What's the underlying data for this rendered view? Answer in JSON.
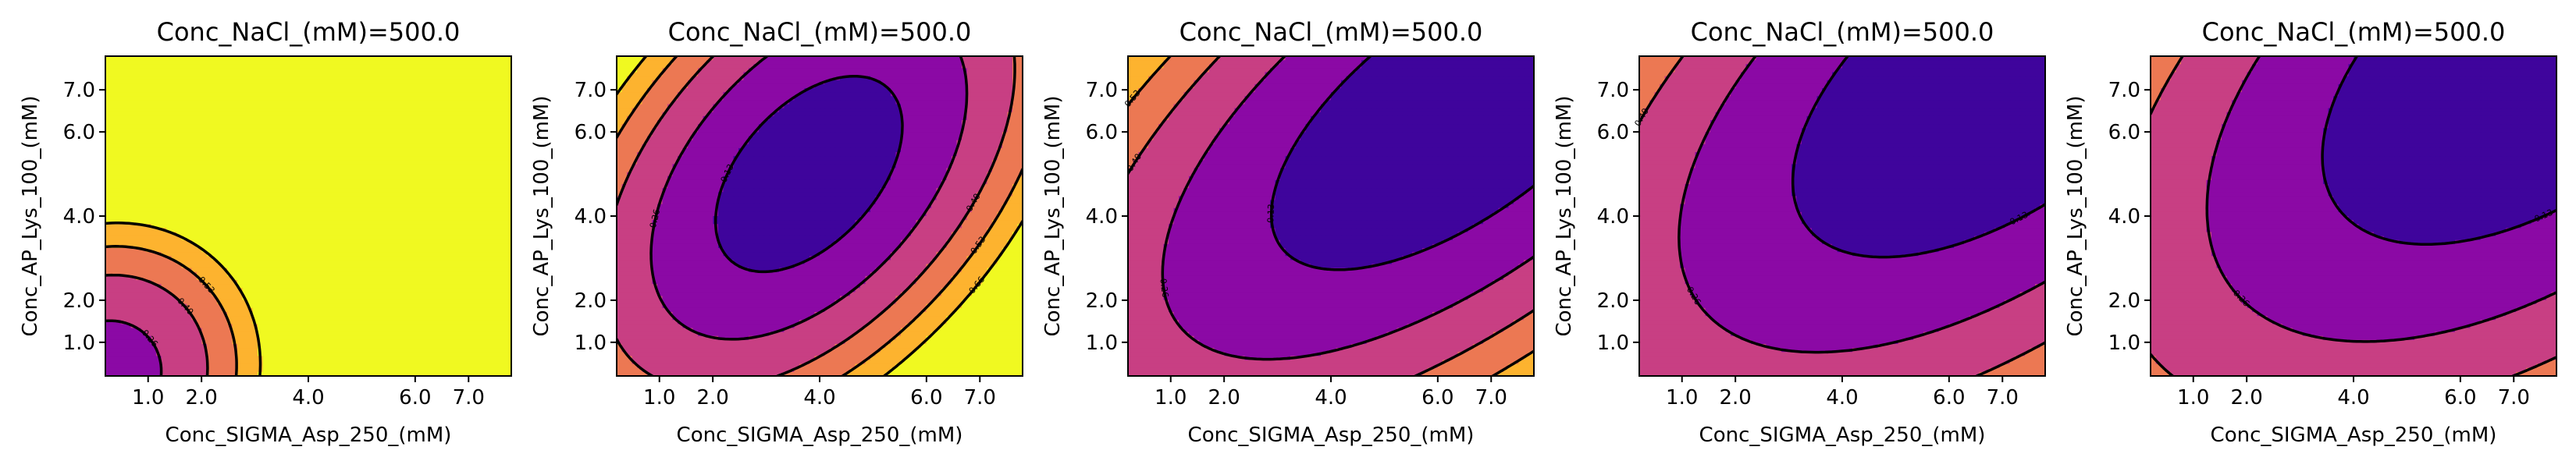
{
  "chart_data": [
    {
      "type": "contour",
      "title": "Conc_NaCl_(mM)=500.0",
      "xlabel": "Conc_SIGMA_Asp_250_(mM)",
      "ylabel": "Conc_AP_Lys_100_(mM)",
      "xlim": [
        0.2,
        7.8
      ],
      "ylim": [
        0.2,
        7.8
      ],
      "xticks": [
        {
          "v": 1.0,
          "label": "1.0"
        },
        {
          "v": 2.0,
          "label": "2.0"
        },
        {
          "v": 4.0,
          "label": "4.0"
        },
        {
          "v": 6.0,
          "label": "6.0"
        },
        {
          "v": 7.0,
          "label": "7.0"
        }
      ],
      "yticks": [
        {
          "v": 1.0,
          "label": "1.0"
        },
        {
          "v": 2.0,
          "label": "2.0"
        },
        {
          "v": 4.0,
          "label": "4.0"
        },
        {
          "v": 6.0,
          "label": "6.0"
        },
        {
          "v": 7.0,
          "label": "7.0"
        }
      ],
      "levels": [
        0.13,
        0.26,
        0.4,
        0.53,
        0.66
      ],
      "contour_labels": [
        "0.26",
        "0.40",
        "0.53"
      ],
      "model": {
        "c": 0.2,
        "x0": 0.2,
        "y0": 0.2,
        "a": 0.055,
        "b": 0.035,
        "xy": -0.007
      }
    },
    {
      "type": "contour",
      "title": "Conc_NaCl_(mM)=500.0",
      "xlabel": "Conc_SIGMA_Asp_250_(mM)",
      "ylabel": "Conc_AP_Lys_100_(mM)",
      "xlim": [
        0.2,
        7.8
      ],
      "ylim": [
        0.2,
        7.8
      ],
      "xticks": [
        {
          "v": 1.0,
          "label": "1.0"
        },
        {
          "v": 2.0,
          "label": "2.0"
        },
        {
          "v": 4.0,
          "label": "4.0"
        },
        {
          "v": 6.0,
          "label": "6.0"
        },
        {
          "v": 7.0,
          "label": "7.0"
        }
      ],
      "yticks": [
        {
          "v": 1.0,
          "label": "1.0"
        },
        {
          "v": 2.0,
          "label": "2.0"
        },
        {
          "v": 4.0,
          "label": "4.0"
        },
        {
          "v": 6.0,
          "label": "6.0"
        },
        {
          "v": 7.0,
          "label": "7.0"
        }
      ],
      "levels": [
        0.13,
        0.26,
        0.4,
        0.53,
        0.66
      ],
      "contour_labels": [
        "0.13",
        "0.26",
        "0.40",
        "0.53",
        "0.66"
      ],
      "model": {
        "c": 0.06,
        "x0": 3.8,
        "y0": 5.0,
        "a": 0.03,
        "b": 0.017,
        "xy": -0.022
      }
    },
    {
      "type": "contour",
      "title": "Conc_NaCl_(mM)=500.0",
      "xlabel": "Conc_SIGMA_Asp_250_(mM)",
      "ylabel": "Conc_AP_Lys_100_(mM)",
      "xlim": [
        0.2,
        7.8
      ],
      "ylim": [
        0.2,
        7.8
      ],
      "xticks": [
        {
          "v": 1.0,
          "label": "1.0"
        },
        {
          "v": 2.0,
          "label": "2.0"
        },
        {
          "v": 4.0,
          "label": "4.0"
        },
        {
          "v": 6.0,
          "label": "6.0"
        },
        {
          "v": 7.0,
          "label": "7.0"
        }
      ],
      "yticks": [
        {
          "v": 1.0,
          "label": "1.0"
        },
        {
          "v": 2.0,
          "label": "2.0"
        },
        {
          "v": 4.0,
          "label": "4.0"
        },
        {
          "v": 6.0,
          "label": "6.0"
        },
        {
          "v": 7.0,
          "label": "7.0"
        }
      ],
      "levels": [
        0.13,
        0.26,
        0.4,
        0.53,
        0.66
      ],
      "contour_labels": [
        "0.13",
        "0.26",
        "0.40",
        "0.53"
      ],
      "model": {
        "c": 0.04,
        "x0": 6.5,
        "y0": 6.5,
        "a": 0.012,
        "b": 0.011,
        "xy": -0.015
      }
    },
    {
      "type": "contour",
      "title": "Conc_NaCl_(mM)=500.0",
      "xlabel": "Conc_SIGMA_Asp_250_(mM)",
      "ylabel": "Conc_AP_Lys_100_(mM)",
      "xlim": [
        0.2,
        7.8
      ],
      "ylim": [
        0.2,
        7.8
      ],
      "xticks": [
        {
          "v": 1.0,
          "label": "1.0"
        },
        {
          "v": 2.0,
          "label": "2.0"
        },
        {
          "v": 4.0,
          "label": "4.0"
        },
        {
          "v": 6.0,
          "label": "6.0"
        },
        {
          "v": 7.0,
          "label": "7.0"
        }
      ],
      "yticks": [
        {
          "v": 1.0,
          "label": "1.0"
        },
        {
          "v": 2.0,
          "label": "2.0"
        },
        {
          "v": 4.0,
          "label": "4.0"
        },
        {
          "v": 6.0,
          "label": "6.0"
        },
        {
          "v": 7.0,
          "label": "7.0"
        }
      ],
      "levels": [
        0.13,
        0.26,
        0.4,
        0.53,
        0.66
      ],
      "contour_labels": [
        "0.13",
        "0.26",
        "0.40"
      ],
      "model": {
        "c": 0.03,
        "x0": 7.2,
        "y0": 7.4,
        "a": 0.009,
        "b": 0.008,
        "xy": -0.01
      }
    },
    {
      "type": "contour",
      "title": "Conc_NaCl_(mM)=500.0",
      "xlabel": "Conc_SIGMA_Asp_250_(mM)",
      "ylabel": "Conc_AP_Lys_100_(mM)",
      "xlim": [
        0.2,
        7.8
      ],
      "ylim": [
        0.2,
        7.8
      ],
      "xticks": [
        {
          "v": 1.0,
          "label": "1.0"
        },
        {
          "v": 2.0,
          "label": "2.0"
        },
        {
          "v": 4.0,
          "label": "4.0"
        },
        {
          "v": 6.0,
          "label": "6.0"
        },
        {
          "v": 7.0,
          "label": "7.0"
        }
      ],
      "yticks": [
        {
          "v": 1.0,
          "label": "1.0"
        },
        {
          "v": 2.0,
          "label": "2.0"
        },
        {
          "v": 4.0,
          "label": "4.0"
        },
        {
          "v": 6.0,
          "label": "6.0"
        },
        {
          "v": 7.0,
          "label": "7.0"
        }
      ],
      "levels": [
        0.13,
        0.26,
        0.4,
        0.53,
        0.66
      ],
      "contour_labels": [
        "0.13",
        "0.26"
      ],
      "model": {
        "c": 0.03,
        "x0": 7.6,
        "y0": 7.8,
        "a": 0.008,
        "b": 0.007,
        "xy": -0.008
      }
    }
  ],
  "colors": {
    "bands": [
      "#3f049c",
      "#8b09a5",
      "#c83f83",
      "#ec7853",
      "#fdb32f",
      "#f0f921"
    ],
    "contour_line": "#000000"
  }
}
